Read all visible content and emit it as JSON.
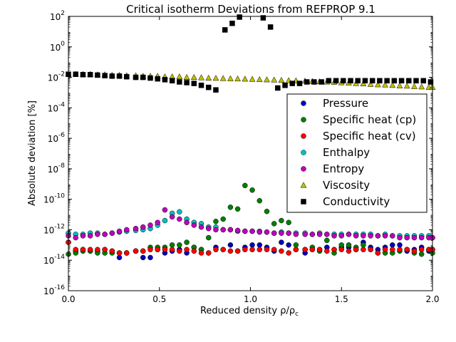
{
  "chart_data": {
    "type": "scatter",
    "title": "Critical isotherm Deviations from REFPROP 9.1",
    "xlabel": "Reduced density ρ/ρ",
    "xlabel_subscript": "c",
    "ylabel": "Absolute deviation [%]",
    "xlim": [
      0.0,
      2.0
    ],
    "ylim": [
      1e-16,
      100
    ],
    "yscale": "log",
    "x_ticks": [
      0.0,
      0.5,
      1.0,
      1.5,
      2.0
    ],
    "x_tick_labels": [
      "0.0",
      "0.5",
      "1.0",
      "1.5",
      "2.0"
    ],
    "y_ticks": [
      -16,
      -14,
      -12,
      -10,
      -8,
      -6,
      -4,
      -2,
      0,
      2
    ],
    "y_tick_labels": [
      {
        "base": "10",
        "exp": "-16"
      },
      {
        "base": "10",
        "exp": "-14"
      },
      {
        "base": "10",
        "exp": "-12"
      },
      {
        "base": "10",
        "exp": "-10"
      },
      {
        "base": "10",
        "exp": "-8"
      },
      {
        "base": "10",
        "exp": "-6"
      },
      {
        "base": "10",
        "exp": "-4"
      },
      {
        "base": "10",
        "exp": "-2"
      },
      {
        "base": "10",
        "exp": "0"
      },
      {
        "base": "10",
        "exp": "2"
      }
    ],
    "grid": false,
    "legend_position": "center-right",
    "x": [
      0.0,
      0.04,
      0.08,
      0.12,
      0.16,
      0.2,
      0.24,
      0.28,
      0.32,
      0.37,
      0.41,
      0.45,
      0.49,
      0.53,
      0.57,
      0.61,
      0.65,
      0.69,
      0.73,
      0.77,
      0.81,
      0.85,
      0.89,
      0.93,
      0.97,
      1.01,
      1.05,
      1.09,
      1.13,
      1.17,
      1.21,
      1.25,
      1.3,
      1.34,
      1.38,
      1.42,
      1.46,
      1.5,
      1.54,
      1.58,
      1.62,
      1.66,
      1.7,
      1.74,
      1.78,
      1.82,
      1.86,
      1.9,
      1.94,
      1.98,
      2.0
    ],
    "series": [
      {
        "name": "Pressure",
        "color": "#0000bf",
        "marker": "circle",
        "values": [
          1.5e-13,
          4e-14,
          5e-14,
          4e-14,
          4e-14,
          5e-14,
          4e-14,
          1.5e-14,
          3e-14,
          4e-14,
          1.5e-14,
          1.5e-14,
          5e-14,
          3e-14,
          4e-14,
          5e-14,
          3e-14,
          7e-14,
          5e-14,
          3e-14,
          7e-14,
          5e-14,
          1e-13,
          4e-14,
          7e-14,
          1e-13,
          1e-13,
          7e-14,
          4e-14,
          1.5e-13,
          1e-13,
          5e-14,
          3e-14,
          5e-14,
          5e-14,
          7e-14,
          5e-14,
          7e-14,
          7e-14,
          5e-14,
          1.5e-13,
          7e-14,
          5e-14,
          7e-14,
          1e-13,
          1e-13,
          4e-14,
          5e-14,
          7e-14,
          4e-14,
          5e-14
        ]
      },
      {
        "name": "Specific heat (cp)",
        "color": "#007f00",
        "marker": "circle",
        "values": [
          2.5e-14,
          3e-14,
          4e-14,
          4e-14,
          3e-14,
          3e-14,
          3e-14,
          3e-14,
          3e-14,
          4e-14,
          4e-14,
          7e-14,
          7e-14,
          7e-14,
          1e-13,
          1e-13,
          1.5e-13,
          7e-14,
          5e-14,
          3e-13,
          3.5e-12,
          5e-12,
          3e-11,
          2.3e-11,
          8e-10,
          4e-10,
          8e-11,
          1.6e-11,
          2.5e-12,
          4e-12,
          3e-12,
          1e-13,
          5e-14,
          7e-14,
          4e-14,
          2e-13,
          3e-14,
          1e-13,
          1e-13,
          7e-14,
          1e-13,
          5e-14,
          3e-14,
          3e-14,
          3e-14,
          4e-14,
          5e-14,
          3e-14,
          2.5e-14,
          5e-14,
          3e-14
        ]
      },
      {
        "name": "Specific heat (cv)",
        "color": "#ff0000",
        "marker": "circle",
        "values": [
          1.5e-13,
          5e-14,
          5e-14,
          5e-14,
          5e-14,
          5e-14,
          4e-14,
          3e-14,
          3e-14,
          4e-14,
          4e-14,
          5e-14,
          5e-14,
          5e-14,
          5e-14,
          4e-14,
          5e-14,
          4e-14,
          3e-14,
          3e-14,
          5e-14,
          5e-14,
          4e-14,
          4e-14,
          5e-14,
          5e-14,
          5e-14,
          5e-14,
          5e-14,
          4e-14,
          3e-14,
          5e-14,
          5e-14,
          5e-14,
          5e-14,
          4e-14,
          5e-14,
          5e-14,
          4e-14,
          5e-14,
          5e-14,
          5e-14,
          3e-14,
          5e-14,
          5e-14,
          5e-14,
          5e-14,
          4e-14,
          5e-14,
          5e-14,
          5e-14
        ]
      },
      {
        "name": "Enthalpy",
        "color": "#00bfbf",
        "marker": "circle",
        "values": [
          6e-13,
          5e-13,
          5e-13,
          6e-13,
          6e-13,
          5e-13,
          6e-13,
          7e-13,
          8e-13,
          9e-13,
          1e-12,
          1.2e-12,
          2e-12,
          4e-12,
          1.2e-11,
          1.5e-11,
          5e-12,
          3e-12,
          2.5e-12,
          1.5e-12,
          1.5e-12,
          1e-12,
          1e-12,
          8e-13,
          8e-13,
          8e-13,
          8e-13,
          7e-13,
          6e-13,
          7e-13,
          6e-13,
          6e-13,
          6e-13,
          5e-13,
          6e-13,
          5e-13,
          5e-13,
          5e-13,
          5e-13,
          5e-13,
          5e-13,
          5e-13,
          4e-13,
          5e-13,
          4e-13,
          4e-13,
          4e-13,
          4e-13,
          4e-13,
          4e-13,
          3e-13
        ]
      },
      {
        "name": "Entropy",
        "color": "#bf00bf",
        "marker": "circle",
        "values": [
          4e-13,
          3e-13,
          4e-13,
          4e-13,
          5e-13,
          5e-13,
          6e-13,
          8e-13,
          1e-12,
          1.2e-12,
          1.5e-12,
          2e-12,
          3e-12,
          2e-11,
          7e-12,
          5e-12,
          3e-12,
          2e-12,
          1.5e-12,
          1.2e-12,
          1e-12,
          1e-12,
          1e-12,
          9e-13,
          8e-13,
          8e-13,
          7e-13,
          7e-13,
          6e-13,
          6e-13,
          6e-13,
          5e-13,
          5e-13,
          5e-13,
          5e-13,
          5e-13,
          4e-13,
          4e-13,
          5e-13,
          4e-13,
          4e-13,
          4e-13,
          4e-13,
          4e-13,
          4e-13,
          3e-13,
          3e-13,
          3e-13,
          3e-13,
          3e-13,
          3e-13
        ]
      },
      {
        "name": "Viscosity",
        "color": "#bfbf00",
        "marker": "triangle",
        "values": [
          0.016,
          0.016,
          0.016,
          0.016,
          0.015,
          0.015,
          0.014,
          0.014,
          0.013,
          0.013,
          0.012,
          0.012,
          0.012,
          0.011,
          0.011,
          0.011,
          0.01,
          0.01,
          0.0095,
          0.009,
          0.0088,
          0.0085,
          0.0082,
          0.008,
          0.0078,
          0.0075,
          0.0072,
          0.007,
          0.0068,
          0.0065,
          0.0062,
          0.006,
          0.0058,
          0.0055,
          0.0052,
          0.005,
          0.0048,
          0.0045,
          0.0043,
          0.004,
          0.0038,
          0.0035,
          0.0033,
          0.0032,
          0.003,
          0.0028,
          0.0027,
          0.0025,
          0.0024,
          0.0022,
          0.0022
        ]
      },
      {
        "name": "Conductivity",
        "color": "#000000",
        "marker": "square",
        "x": [
          0.0,
          0.04,
          0.08,
          0.12,
          0.16,
          0.2,
          0.24,
          0.28,
          0.32,
          0.37,
          0.41,
          0.45,
          0.49,
          0.53,
          0.57,
          0.61,
          0.65,
          0.69,
          0.73,
          0.77,
          0.81,
          0.86,
          0.9,
          0.94,
          1.07,
          1.11,
          1.15,
          1.19,
          1.23,
          1.27,
          1.31,
          1.35,
          1.39,
          1.43,
          1.47,
          1.51,
          1.55,
          1.59,
          1.63,
          1.67,
          1.71,
          1.75,
          1.79,
          1.83,
          1.87,
          1.91,
          1.95,
          1.99
        ],
        "values": [
          0.016,
          0.016,
          0.015,
          0.015,
          0.014,
          0.013,
          0.012,
          0.012,
          0.011,
          0.01,
          0.01,
          0.009,
          0.008,
          0.007,
          0.006,
          0.005,
          0.0045,
          0.004,
          0.003,
          0.0022,
          0.0015,
          13,
          35,
          90,
          80,
          20,
          0.002,
          0.003,
          0.004,
          0.004,
          0.005,
          0.005,
          0.005,
          0.006,
          0.006,
          0.006,
          0.006,
          0.006,
          0.006,
          0.006,
          0.006,
          0.006,
          0.006,
          0.006,
          0.006,
          0.006,
          0.006,
          0.005
        ]
      }
    ]
  }
}
